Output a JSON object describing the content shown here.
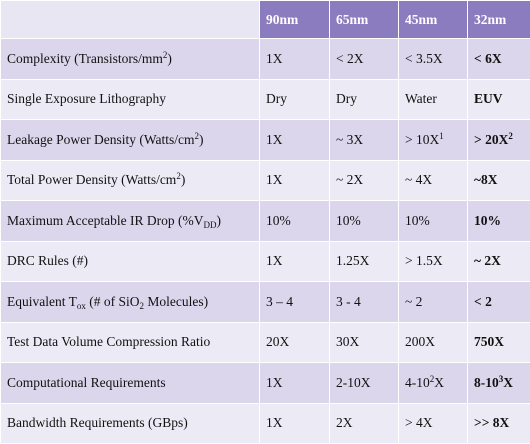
{
  "table": {
    "headers": [
      "",
      "90nm",
      "65nm",
      "45nm",
      "32nm"
    ],
    "rows": [
      {
        "label_parts": [
          {
            "t": "Complexity (Transistors/mm"
          },
          {
            "t": "2",
            "sup": true
          },
          {
            "t": ")"
          }
        ],
        "values": [
          [
            {
              "t": "1X"
            }
          ],
          [
            {
              "t": "< 2X"
            }
          ],
          [
            {
              "t": "< 3.5X"
            }
          ],
          [
            {
              "t": "< 6X"
            }
          ]
        ]
      },
      {
        "label_parts": [
          {
            "t": "Single Exposure Lithography"
          }
        ],
        "values": [
          [
            {
              "t": "Dry"
            }
          ],
          [
            {
              "t": "Dry"
            }
          ],
          [
            {
              "t": "Water"
            }
          ],
          [
            {
              "t": "EUV"
            }
          ]
        ]
      },
      {
        "label_parts": [
          {
            "t": "Leakage Power Density (Watts/cm"
          },
          {
            "t": "2",
            "sup": true
          },
          {
            "t": ")"
          }
        ],
        "values": [
          [
            {
              "t": "1X"
            }
          ],
          [
            {
              "t": "~ 3X"
            }
          ],
          [
            {
              "t": "> 10X"
            },
            {
              "t": "1",
              "sup": true
            }
          ],
          [
            {
              "t": "> 20X"
            },
            {
              "t": "2",
              "sup": true
            }
          ]
        ]
      },
      {
        "label_parts": [
          {
            "t": "Total Power Density (Watts/cm"
          },
          {
            "t": "2",
            "sup": true
          },
          {
            "t": ")"
          }
        ],
        "values": [
          [
            {
              "t": "1X"
            }
          ],
          [
            {
              "t": "~ 2X"
            }
          ],
          [
            {
              "t": "~ 4X"
            }
          ],
          [
            {
              "t": "~8X"
            }
          ]
        ]
      },
      {
        "label_parts": [
          {
            "t": "Maximum Acceptable IR Drop (%V"
          },
          {
            "t": "DD",
            "sub": true
          },
          {
            "t": ")"
          }
        ],
        "values": [
          [
            {
              "t": "10%"
            }
          ],
          [
            {
              "t": "10%"
            }
          ],
          [
            {
              "t": "10%"
            }
          ],
          [
            {
              "t": "10%"
            }
          ]
        ]
      },
      {
        "label_parts": [
          {
            "t": "DRC Rules (#)"
          }
        ],
        "values": [
          [
            {
              "t": "1X"
            }
          ],
          [
            {
              "t": "1.25X"
            }
          ],
          [
            {
              "t": "> 1.5X"
            }
          ],
          [
            {
              "t": "~ 2X"
            }
          ]
        ]
      },
      {
        "label_parts": [
          {
            "t": "Equivalent T"
          },
          {
            "t": "ox",
            "sub": true
          },
          {
            "t": " (# of SiO"
          },
          {
            "t": "2",
            "sub": true
          },
          {
            "t": " Molecules)"
          }
        ],
        "values": [
          [
            {
              "t": "3 – 4"
            }
          ],
          [
            {
              "t": "3 - 4"
            }
          ],
          [
            {
              "t": "~ 2"
            }
          ],
          [
            {
              "t": "< 2"
            }
          ]
        ]
      },
      {
        "label_parts": [
          {
            "t": "Test Data Volume Compression Ratio"
          }
        ],
        "values": [
          [
            {
              "t": "20X"
            }
          ],
          [
            {
              "t": "30X"
            }
          ],
          [
            {
              "t": "200X"
            }
          ],
          [
            {
              "t": "750X"
            }
          ]
        ]
      },
      {
        "label_parts": [
          {
            "t": "Computational Requirements"
          }
        ],
        "values": [
          [
            {
              "t": "1X"
            }
          ],
          [
            {
              "t": "2-10X"
            }
          ],
          [
            {
              "t": "4-10"
            },
            {
              "t": "2",
              "sup": true
            },
            {
              "t": "X"
            }
          ],
          [
            {
              "t": "8-10"
            },
            {
              "t": "3",
              "sup": true
            },
            {
              "t": "X"
            }
          ]
        ]
      },
      {
        "label_parts": [
          {
            "t": "Bandwidth Requirements (GBps)"
          }
        ],
        "values": [
          [
            {
              "t": "1X"
            }
          ],
          [
            {
              "t": "2X"
            }
          ],
          [
            {
              "t": "> 4X"
            }
          ],
          [
            {
              "t": ">> 8X"
            }
          ]
        ]
      }
    ]
  }
}
